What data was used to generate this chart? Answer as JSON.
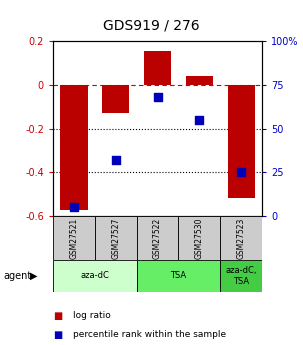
{
  "title": "GDS919 / 276",
  "samples": [
    "GSM27521",
    "GSM27527",
    "GSM27522",
    "GSM27530",
    "GSM27523"
  ],
  "log_ratios": [
    -0.575,
    -0.13,
    0.155,
    0.04,
    -0.52
  ],
  "percentile_ranks": [
    5,
    32,
    68,
    55,
    25
  ],
  "ylim_left": [
    -0.6,
    0.2
  ],
  "ylim_right": [
    0,
    100
  ],
  "bar_color": "#bb0000",
  "dot_color": "#0000bb",
  "bar_width": 0.65,
  "dot_size": 30,
  "agent_groups": [
    {
      "label": "aza-dC",
      "span": [
        0,
        2
      ],
      "color": "#ccffcc"
    },
    {
      "label": "TSA",
      "span": [
        2,
        4
      ],
      "color": "#66ee66"
    },
    {
      "label": "aza-dC,\nTSA",
      "span": [
        4,
        5
      ],
      "color": "#44cc44"
    }
  ],
  "sample_box_color": "#cccccc",
  "dashed_line_color": "#cc0000",
  "dotted_line_color": "#000000",
  "ylabel_left_color": "#cc0000",
  "ylabel_right_color": "#0000cc",
  "yticks_left": [
    -0.6,
    -0.4,
    -0.2,
    0.0,
    0.2
  ],
  "yticks_right": [
    0,
    25,
    50,
    75,
    100
  ],
  "ytick_labels_right": [
    "0",
    "25",
    "50",
    "75",
    "100%"
  ],
  "ytick_labels_left": [
    "-0.6",
    "-0.4",
    "-0.2",
    "0",
    "0.2"
  ]
}
